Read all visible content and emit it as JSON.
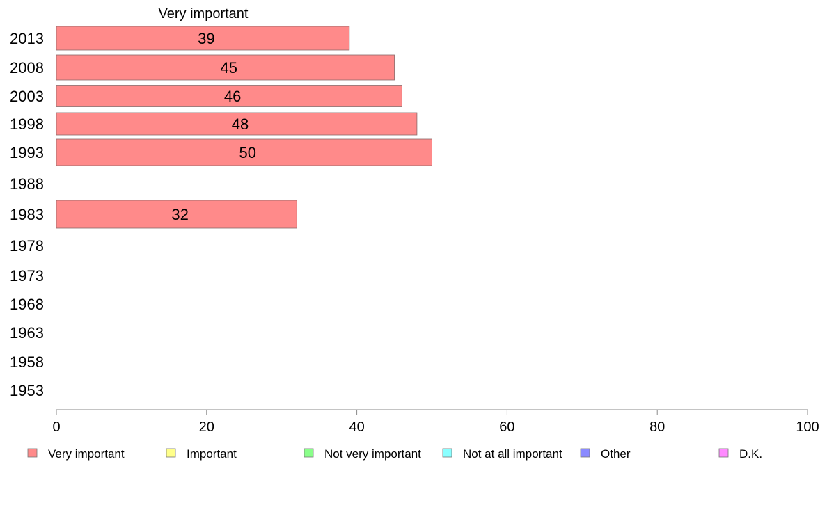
{
  "chart_data": {
    "type": "bar",
    "orientation": "horizontal",
    "title": "Very important",
    "categories": [
      "2013",
      "2008",
      "2003",
      "1998",
      "1993",
      "1988",
      "1983",
      "1978",
      "1973",
      "1968",
      "1963",
      "1958",
      "1953"
    ],
    "series": [
      {
        "name": "Very important",
        "color": "#ff8a8a",
        "values": [
          39,
          45,
          46,
          48,
          50,
          null,
          32,
          null,
          null,
          null,
          null,
          null,
          null
        ],
        "labels": [
          "39",
          "45",
          "46",
          "48",
          "50",
          "",
          "32",
          "",
          "",
          "",
          "",
          "",
          ""
        ]
      }
    ],
    "xlim": [
      0,
      100
    ],
    "xticks": [
      "0",
      "20",
      "40",
      "60",
      "80",
      "100"
    ],
    "grid": false,
    "legend_position": "bottom",
    "legend": [
      {
        "label": "Very important",
        "color": "#ff8a8a"
      },
      {
        "label": "Important",
        "color": "#ffff8a"
      },
      {
        "label": "Not very important",
        "color": "#8aff8a"
      },
      {
        "label": "Not at all important",
        "color": "#8affff"
      },
      {
        "label": "Other",
        "color": "#8a8aff"
      },
      {
        "label": "D.K.",
        "color": "#ff8aff"
      }
    ]
  }
}
